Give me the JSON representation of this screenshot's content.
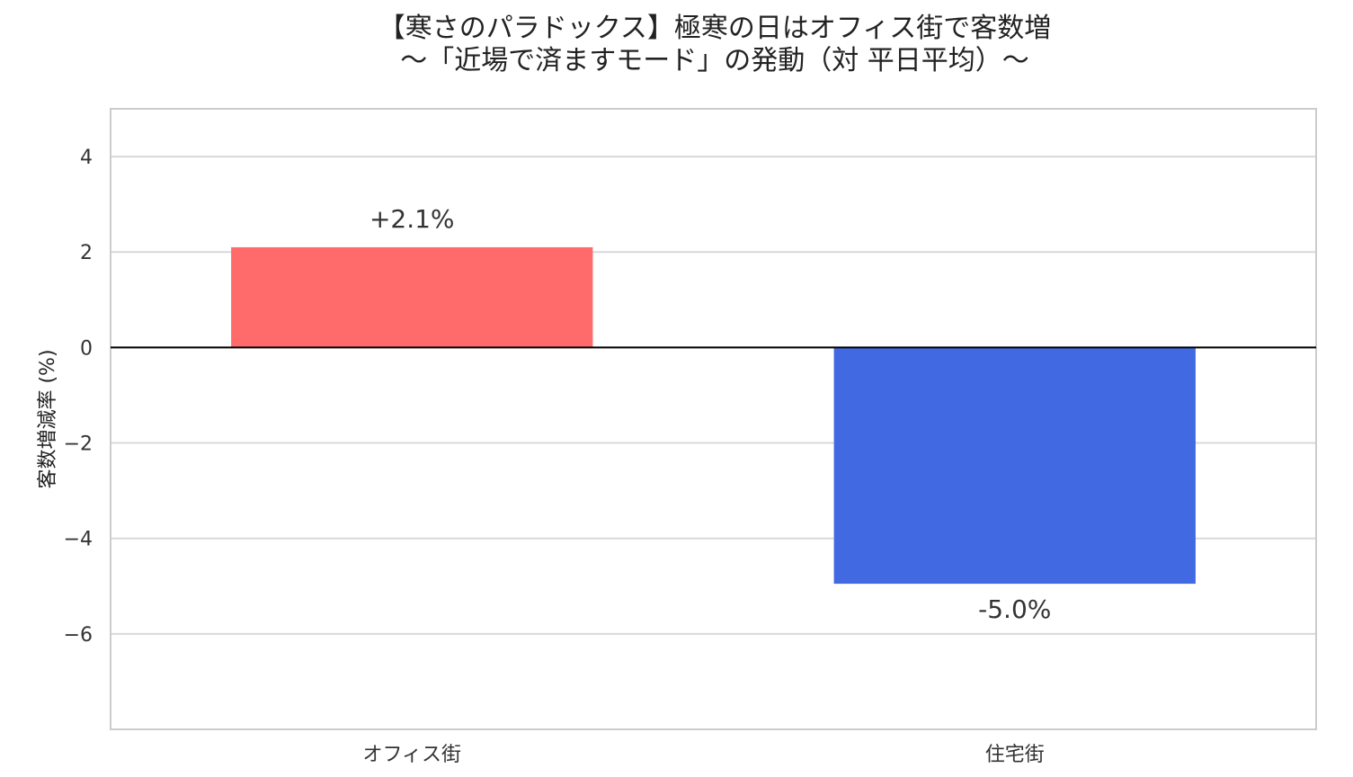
{
  "chart_data": {
    "type": "bar",
    "title_line1": "【寒さのパラドックス】極寒の日はオフィス街で客数増",
    "title_line2": "〜「近場で済ますモード」の発動（対 平日平均）〜",
    "xlabel": "",
    "ylabel": "客数増減率 (%)",
    "categories": [
      "オフィス街",
      "住宅街"
    ],
    "values": [
      2.1,
      -4.95
    ],
    "value_labels": [
      "+2.1%",
      "-5.0%"
    ],
    "colors": [
      "#FF6B6B",
      "#4169E1"
    ],
    "ylim": [
      -8,
      5
    ],
    "yticks": [
      4,
      2,
      0,
      -2,
      -4,
      -6
    ],
    "ytick_labels": [
      "4",
      "2",
      "0",
      "−2",
      "−4",
      "−6"
    ],
    "grid": true,
    "legend": "none"
  }
}
